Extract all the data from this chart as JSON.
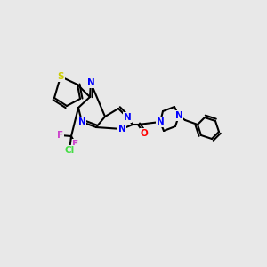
{
  "background_color": "#e8e8e8",
  "bond_color": "#000000",
  "bond_lw": 1.5,
  "atom_colors": {
    "N": "#0000ff",
    "O": "#ff0000",
    "S": "#cccc00",
    "F": "#cc44cc",
    "Cl": "#44dd44",
    "C": "#000000"
  },
  "font_size": 7.5
}
